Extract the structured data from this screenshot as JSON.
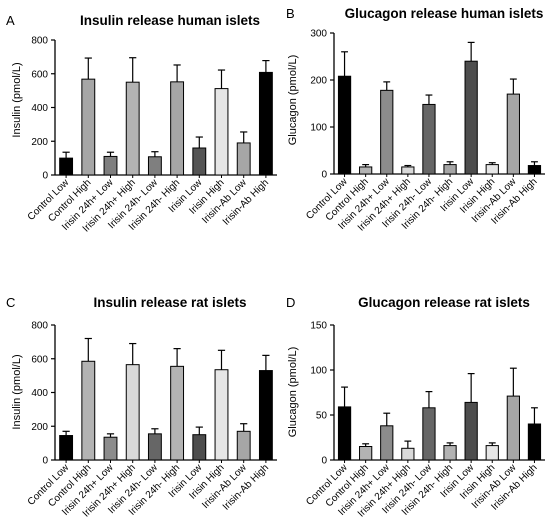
{
  "chart_data": [
    {
      "type": "bar",
      "panel_letter": "A",
      "title": "Insulin release human islets",
      "ylabel": "Insulin (pmol/L)",
      "ylim": [
        0,
        800
      ],
      "yticks": [
        0,
        200,
        400,
        600,
        800
      ],
      "categories": [
        "Control Low",
        "Control High",
        "Irisin 24h+ Low",
        "Irisin 24h+ High",
        "Irisin 24h- Low",
        "Irisin 24h- High",
        "Irisin Low",
        "Irisin High",
        "Irisin-Ab Low",
        "Irisin-Ab High"
      ],
      "values": [
        100,
        568,
        110,
        550,
        108,
        552,
        160,
        512,
        190,
        608
      ],
      "errors": [
        35,
        125,
        25,
        145,
        30,
        100,
        65,
        110,
        65,
        70
      ],
      "colors": [
        "#000000",
        "#a6a6a6",
        "#7f7f7f",
        "#b3b3b3",
        "#7f7f7f",
        "#a6a6a6",
        "#555555",
        "#e6e6e6",
        "#a6a6a6",
        "#000000"
      ]
    },
    {
      "type": "bar",
      "panel_letter": "B",
      "title": "Glucagon release human islets",
      "ylabel": "Glucagon (pmol/L)",
      "ylim": [
        0,
        300
      ],
      "yticks": [
        0,
        100,
        200,
        300
      ],
      "categories": [
        "Control Low",
        "Control High",
        "Irisin 24h+ Low",
        "Irisin 24h+ High",
        "Irisin 24h- Low",
        "Irisin 24h- High",
        "Irisin Low",
        "Irisin High",
        "Irisin-Ab Low",
        "Irisin-Ab High"
      ],
      "values": [
        208,
        15,
        178,
        15,
        148,
        20,
        240,
        20,
        170,
        18
      ],
      "errors": [
        52,
        5,
        18,
        3,
        20,
        6,
        40,
        4,
        32,
        8
      ],
      "colors": [
        "#000000",
        "#b3b3b3",
        "#8c8c8c",
        "#d9d9d9",
        "#666666",
        "#a6a6a6",
        "#4d4d4d",
        "#e6e6e6",
        "#a6a6a6",
        "#000000"
      ]
    },
    {
      "type": "bar",
      "panel_letter": "C",
      "title": "Insulin release rat islets",
      "ylabel": "Insulin (pmol/L)",
      "ylim": [
        0,
        800
      ],
      "yticks": [
        0,
        200,
        400,
        600,
        800
      ],
      "categories": [
        "Control Low",
        "Control High",
        "Irisin 24h+ Low",
        "Irisin 24h+ High",
        "Irisin 24h- Low",
        "Irisin 24h- High",
        "Irisin Low",
        "Irisin High",
        "Irisin-Ab Low",
        "Irisin-Ab High"
      ],
      "values": [
        145,
        585,
        135,
        565,
        155,
        555,
        150,
        535,
        170,
        530
      ],
      "errors": [
        25,
        135,
        20,
        125,
        30,
        105,
        45,
        115,
        45,
        90
      ],
      "colors": [
        "#000000",
        "#b3b3b3",
        "#8c8c8c",
        "#d9d9d9",
        "#666666",
        "#b3b3b3",
        "#4d4d4d",
        "#e6e6e6",
        "#a6a6a6",
        "#000000"
      ]
    },
    {
      "type": "bar",
      "panel_letter": "D",
      "title": "Glucagon release rat islets",
      "ylabel": "Glucagon (pmol/L)",
      "ylim": [
        0,
        150
      ],
      "yticks": [
        0,
        50,
        100,
        150
      ],
      "categories": [
        "Control Low",
        "Control High",
        "Irisin 24h+ Low",
        "Irisin 24h+ High",
        "Irisin 24h- Low",
        "Irisin 24h- High",
        "Irisin Low",
        "Irisin High",
        "Irisin-Ab Low",
        "Irisin-Ab High"
      ],
      "values": [
        59,
        15,
        38,
        13,
        58,
        16,
        64,
        16,
        71,
        40
      ],
      "errors": [
        22,
        3,
        14,
        8,
        18,
        3,
        32,
        3,
        31,
        18
      ],
      "colors": [
        "#000000",
        "#b3b3b3",
        "#8c8c8c",
        "#d9d9d9",
        "#666666",
        "#b3b3b3",
        "#4d4d4d",
        "#e6e6e6",
        "#a6a6a6",
        "#000000"
      ]
    }
  ]
}
